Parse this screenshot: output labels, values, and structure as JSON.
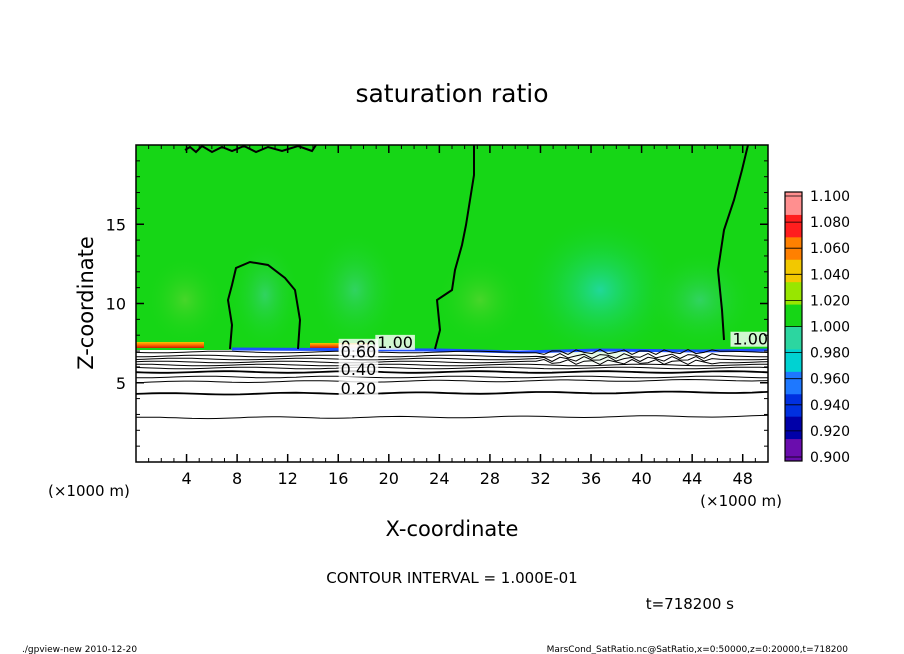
{
  "chart_data": {
    "type": "heatmap",
    "title": "saturation ratio",
    "xlabel": "X-coordinate",
    "ylabel": "Z-coordinate",
    "x_unit_left": "(×1000 m)",
    "x_unit_right": "(×1000 m)",
    "xlim": [
      0,
      50
    ],
    "ylim": [
      0,
      20
    ],
    "x_ticks": [
      4,
      8,
      12,
      16,
      20,
      24,
      28,
      32,
      36,
      40,
      44,
      48
    ],
    "y_ticks": [
      5,
      10,
      15
    ],
    "colorbar": {
      "levels": [
        "0.900",
        "0.920",
        "0.940",
        "0.960",
        "0.980",
        "1.000",
        "1.020",
        "1.040",
        "1.060",
        "1.080",
        "1.100"
      ],
      "colors": [
        "#6a0dad",
        "#0000a8",
        "#0030e0",
        "#1e78ff",
        "#00d2d2",
        "#2cd6a0",
        "#16d616",
        "#98e600",
        "#f2c800",
        "#ff8000",
        "#ff1e1e",
        "#ff8f8f"
      ]
    },
    "contour_labels": [
      {
        "text": "1.00",
        "x": 20.5,
        "z": 7.2
      },
      {
        "text": "0.80",
        "x": 17.6,
        "z": 6.95
      },
      {
        "text": "0.60",
        "x": 17.6,
        "z": 6.6
      },
      {
        "text": "0.40",
        "x": 17.6,
        "z": 5.5
      },
      {
        "text": "0.20",
        "x": 17.6,
        "z": 4.3
      },
      {
        "text": "1.00",
        "x": 48.6,
        "z": 7.4
      }
    ],
    "contour_interval_text": "CONTOUR INTERVAL = 1.000E-01",
    "time_text": "t=718200 s"
  },
  "footer": {
    "left": "./gpview-new   2010-12-20",
    "right": "MarsCond_SatRatio.nc@SatRatio,x=0:50000,z=0:20000,t=718200"
  }
}
